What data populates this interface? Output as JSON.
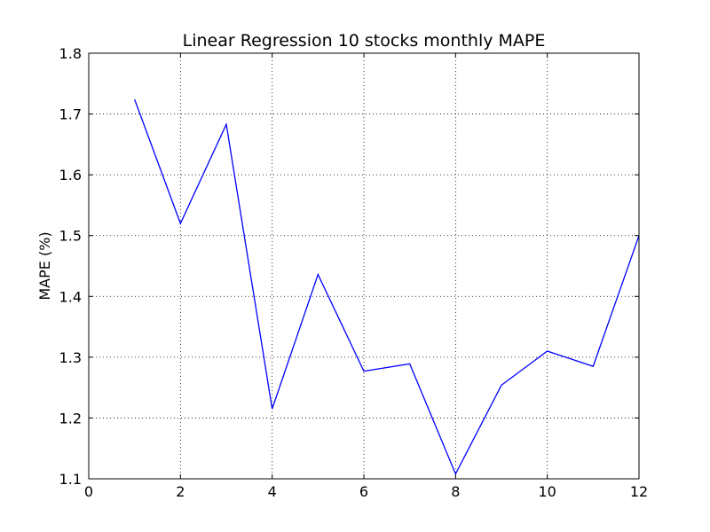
{
  "chart_data": {
    "type": "line",
    "title": "Linear Regression 10 stocks monthly MAPE",
    "xlabel": "",
    "ylabel": "MAPE (%)",
    "xlim": [
      0,
      12
    ],
    "ylim": [
      1.1,
      1.8
    ],
    "xticks": [
      0,
      2,
      4,
      6,
      8,
      10,
      12
    ],
    "yticks": [
      1.1,
      1.2,
      1.3,
      1.4,
      1.5,
      1.6,
      1.7,
      1.8
    ],
    "xtick_labels": [
      "0",
      "2",
      "4",
      "6",
      "8",
      "10",
      "12"
    ],
    "ytick_labels": [
      "1.1",
      "1.2",
      "1.3",
      "1.4",
      "1.5",
      "1.6",
      "1.7",
      "1.8"
    ],
    "grid": true,
    "series": [
      {
        "color": "#0000ff",
        "x": [
          1,
          2,
          3,
          4,
          5,
          6,
          7,
          8,
          9,
          10,
          11,
          12
        ],
        "values": [
          1.724,
          1.52,
          1.683,
          1.215,
          1.436,
          1.277,
          1.289,
          1.108,
          1.254,
          1.31,
          1.285,
          1.5
        ]
      }
    ]
  }
}
